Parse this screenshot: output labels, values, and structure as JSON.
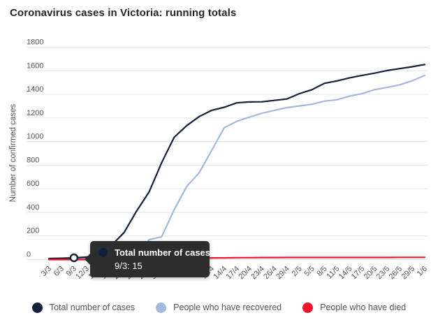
{
  "title": "Coronavirus cases in Victoria: running totals",
  "colors": {
    "total": "#15203c",
    "recovered": "#a3b8da",
    "died": "#f0142d",
    "grid": "#e6e6e6",
    "axis_text": "#555555",
    "tooltip_bg": "#2d2d2d",
    "marker_fill": "#ffffff"
  },
  "tooltip": {
    "series": "Total number of cases",
    "value_label": "9/3: 15",
    "point_index": 2,
    "point_value": 15
  },
  "chart_data": {
    "type": "line",
    "title": "Coronavirus cases in Victoria: running totals",
    "xlabel": "",
    "ylabel": "Number of confirmed cases",
    "ylim": [
      0,
      1800
    ],
    "ytick_step": 200,
    "grid": true,
    "legend_position": "bottom",
    "categories": [
      "3/3",
      "6/3",
      "9/3",
      "12/3",
      "15/3",
      "18/3",
      "21/3",
      "24/3",
      "27/3",
      "30/3",
      "2/4",
      "5/4",
      "8/4",
      "11/4",
      "14/4",
      "17/4",
      "20/4",
      "23/4",
      "26/4",
      "29/4",
      "2/5",
      "5/5",
      "8/5",
      "11/5",
      "14/5",
      "17/5",
      "20/5",
      "23/5",
      "26/5",
      "29/5",
      "1/6"
    ],
    "series": [
      {
        "name": "Total number of cases",
        "color": "#15203c",
        "values": [
          9,
          11,
          15,
          21,
          57,
          121,
          229,
          411,
          574,
          821,
          1036,
          1135,
          1212,
          1265,
          1291,
          1328,
          1336,
          1337,
          1349,
          1361,
          1406,
          1440,
          1494,
          1514,
          1540,
          1561,
          1580,
          1602,
          1618,
          1634,
          1653
        ]
      },
      {
        "name": "People who have recovered",
        "color": "#a3b8da",
        "values": [
          4,
          4,
          8,
          9,
          13,
          16,
          25,
          34,
          169,
          193,
          422,
          620,
          736,
          926,
          1118,
          1172,
          1207,
          1239,
          1265,
          1288,
          1302,
          1316,
          1343,
          1354,
          1385,
          1407,
          1440,
          1459,
          1481,
          1515,
          1561
        ]
      },
      {
        "name": "People who have died",
        "color": "#f0142d",
        "values": [
          0,
          0,
          0,
          0,
          0,
          0,
          0,
          2,
          3,
          4,
          7,
          9,
          12,
          14,
          14,
          16,
          16,
          17,
          17,
          18,
          18,
          18,
          18,
          18,
          18,
          18,
          18,
          18,
          19,
          19,
          19
        ]
      }
    ]
  }
}
